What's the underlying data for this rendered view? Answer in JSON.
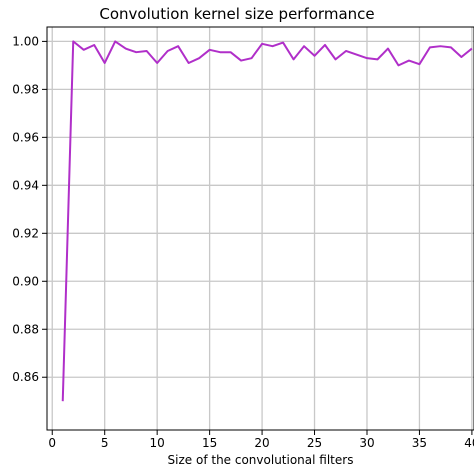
{
  "chart_data": {
    "type": "line",
    "title": "Convolution kernel size performance",
    "xlabel": "Size of the convolutional filters",
    "ylabel": "",
    "xlim": [
      -0.5,
      40.2
    ],
    "ylim": [
      0.838,
      1.006
    ],
    "x_ticks": [
      0,
      5,
      10,
      15,
      20,
      25,
      30,
      35,
      40
    ],
    "x_tick_labels": [
      "0",
      "5",
      "10",
      "15",
      "20",
      "25",
      "30",
      "35",
      "40"
    ],
    "y_ticks": [
      0.86,
      0.88,
      0.9,
      0.92,
      0.94,
      0.96,
      0.98,
      1.0
    ],
    "y_tick_labels": [
      "0.86",
      "0.88",
      "0.90",
      "0.92",
      "0.94",
      "0.96",
      "0.98",
      "1.00"
    ],
    "grid": true,
    "series": [
      {
        "color": "#b02fc9",
        "x": [
          1,
          2,
          3,
          4,
          5,
          6,
          7,
          8,
          9,
          10,
          11,
          12,
          13,
          14,
          15,
          16,
          17,
          18,
          19,
          20,
          21,
          22,
          23,
          24,
          25,
          26,
          27,
          28,
          29,
          30,
          31,
          32,
          33,
          34,
          35,
          36,
          37,
          38,
          39,
          40
        ],
        "values": [
          0.85,
          1.0,
          0.9965,
          0.9985,
          0.991,
          1.0,
          0.997,
          0.9955,
          0.996,
          0.991,
          0.996,
          0.998,
          0.991,
          0.993,
          0.9965,
          0.9955,
          0.9955,
          0.992,
          0.993,
          0.999,
          0.998,
          0.9995,
          0.9925,
          0.998,
          0.994,
          0.9985,
          0.9925,
          0.996,
          0.9945,
          0.993,
          0.9925,
          0.997,
          0.99,
          0.992,
          0.9905,
          0.9975,
          0.998,
          0.9975,
          0.9935,
          0.997
        ]
      }
    ]
  }
}
